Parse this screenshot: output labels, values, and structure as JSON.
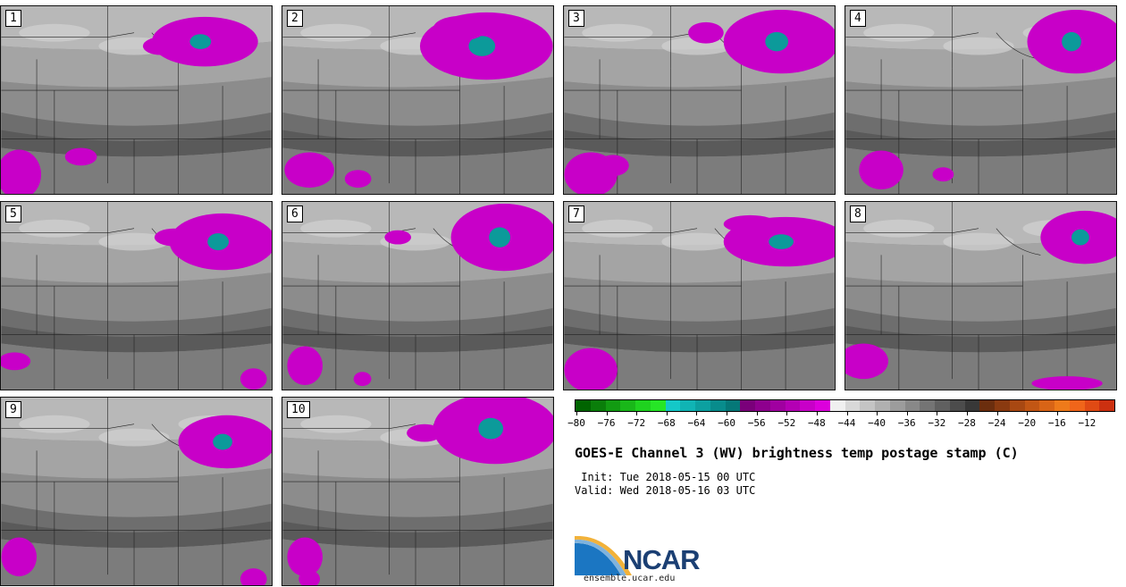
{
  "panels": [
    {
      "label": "1",
      "clouds": [
        [
          230,
          40,
          60,
          28
        ],
        [
          180,
          45,
          20,
          10
        ],
        [
          20,
          190,
          25,
          28
        ],
        [
          90,
          170,
          18,
          10
        ]
      ]
    },
    {
      "label": "2",
      "clouds": [
        [
          230,
          45,
          75,
          38
        ],
        [
          200,
          25,
          30,
          14
        ],
        [
          30,
          185,
          28,
          20
        ],
        [
          85,
          195,
          15,
          10
        ]
      ]
    },
    {
      "label": "3",
      "clouds": [
        [
          245,
          40,
          65,
          36
        ],
        [
          160,
          30,
          20,
          12
        ],
        [
          30,
          190,
          30,
          25
        ],
        [
          55,
          180,
          18,
          12
        ]
      ]
    },
    {
      "label": "4",
      "clouds": [
        [
          260,
          40,
          55,
          36
        ],
        [
          40,
          185,
          25,
          22
        ],
        [
          110,
          190,
          12,
          8
        ]
      ]
    },
    {
      "label": "5",
      "clouds": [
        [
          250,
          45,
          60,
          32
        ],
        [
          195,
          40,
          22,
          10
        ],
        [
          15,
          180,
          18,
          10
        ],
        [
          285,
          200,
          15,
          12
        ]
      ]
    },
    {
      "label": "6",
      "clouds": [
        [
          250,
          40,
          60,
          38
        ],
        [
          130,
          40,
          15,
          8
        ],
        [
          25,
          185,
          20,
          22
        ],
        [
          90,
          200,
          10,
          8
        ]
      ]
    },
    {
      "label": "7",
      "clouds": [
        [
          250,
          45,
          70,
          28
        ],
        [
          210,
          25,
          30,
          10
        ],
        [
          30,
          190,
          30,
          25
        ]
      ]
    },
    {
      "label": "8",
      "clouds": [
        [
          270,
          40,
          50,
          30
        ],
        [
          20,
          180,
          28,
          20
        ],
        [
          250,
          205,
          40,
          8
        ]
      ]
    },
    {
      "label": "9",
      "clouds": [
        [
          255,
          50,
          55,
          30
        ],
        [
          20,
          180,
          20,
          22
        ],
        [
          285,
          205,
          15,
          12
        ]
      ]
    },
    {
      "label": "10",
      "clouds": [
        [
          240,
          35,
          70,
          40
        ],
        [
          160,
          40,
          20,
          10
        ],
        [
          25,
          180,
          20,
          22
        ],
        [
          30,
          205,
          12,
          10
        ]
      ]
    }
  ],
  "colorbar": {
    "colors": [
      "#006400",
      "#0a7e0a",
      "#129b12",
      "#19b719",
      "#1fd21f",
      "#26e626",
      "#14c8c8",
      "#10b4b4",
      "#0ca0a0",
      "#088c8c",
      "#057878",
      "#7a007a",
      "#8e008e",
      "#a000a0",
      "#b400b4",
      "#c800c8",
      "#dc00dc",
      "#f0f0f0",
      "#d8d8d8",
      "#c4c4c4",
      "#b0b0b0",
      "#9c9c9c",
      "#888888",
      "#747474",
      "#606060",
      "#4c4c4c",
      "#383838",
      "#6b2e0e",
      "#8a3a10",
      "#a84812",
      "#c25614",
      "#d86416",
      "#ee7a1a",
      "#f0651a",
      "#e04a14",
      "#cc3010"
    ],
    "ticks": [
      "−80",
      "−76",
      "−72",
      "−68",
      "−64",
      "−60",
      "−56",
      "−52",
      "−48",
      "−44",
      "−40",
      "−36",
      "−32",
      "−28",
      "−24",
      "−20",
      "−16",
      "−12"
    ]
  },
  "title": "GOES-E Channel 3 (WV) brightness temp postage stamp (C)",
  "init": " Init: Tue 2018-05-15 00 UTC",
  "valid": "Valid: Wed 2018-05-16 03 UTC",
  "logo_text": "NCAR",
  "website": "ensemble.ucar.edu"
}
